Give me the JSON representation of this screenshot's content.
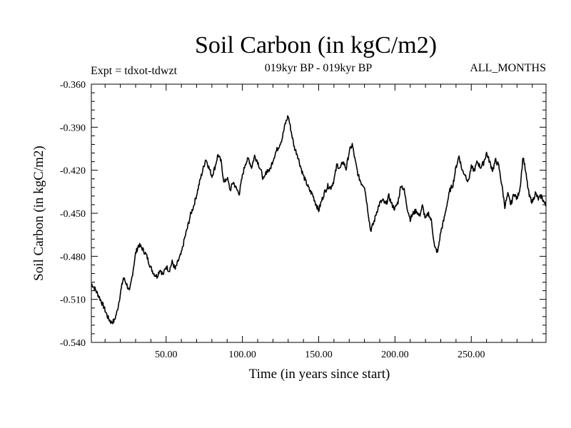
{
  "header": {
    "title": "Soil Carbon (in kgC/m2)",
    "subtitle": "019kyr BP - 019kyr BP",
    "expt": "Expt = tdxot-tdwzt",
    "months": "ALL_MONTHS"
  },
  "chart_data": {
    "type": "line",
    "title": "Soil Carbon (in kgC/m2)",
    "xlabel": "Time (in years since start)",
    "ylabel": "Soil Carbon (in kgC/m2)",
    "xlim": [
      1,
      299
    ],
    "ylim": [
      -0.54,
      -0.36
    ],
    "xticks": [
      50,
      100,
      150,
      200,
      250
    ],
    "xtick_labels": [
      "50.00",
      "100.00",
      "150.00",
      "200.00",
      "250.00"
    ],
    "yticks": [
      -0.36,
      -0.39,
      -0.42,
      -0.45,
      -0.48,
      -0.51,
      -0.54
    ],
    "ytick_labels": [
      "-0.360",
      "-0.390",
      "-0.420",
      "-0.450",
      "-0.480",
      "-0.510",
      "-0.540"
    ],
    "grid": false,
    "series": [
      {
        "color": "#000000",
        "x": [
          1,
          3,
          6,
          9,
          12,
          14,
          16,
          18,
          20,
          22,
          24,
          26,
          28,
          30,
          32,
          34,
          37,
          40,
          42,
          44,
          46,
          48,
          50,
          52,
          54,
          56,
          58,
          60,
          62,
          64,
          66,
          68,
          70,
          72,
          74,
          76,
          78,
          80,
          82,
          84,
          86,
          88,
          90,
          92,
          94,
          96,
          98,
          100,
          102,
          104,
          106,
          108,
          110,
          112,
          114,
          116,
          118,
          120,
          122,
          124,
          126,
          128,
          130,
          132,
          134,
          136,
          138,
          140,
          142,
          144,
          146,
          148,
          150,
          152,
          154,
          156,
          158,
          160,
          162,
          164,
          166,
          168,
          170,
          172,
          174,
          176,
          178,
          180,
          182,
          184,
          186,
          188,
          190,
          192,
          194,
          196,
          198,
          200,
          202,
          204,
          206,
          208,
          210,
          212,
          214,
          216,
          218,
          220,
          222,
          224,
          226,
          228,
          230,
          232,
          234,
          236,
          238,
          240,
          242,
          244,
          246,
          248,
          250,
          252,
          254,
          256,
          258,
          260,
          262,
          264,
          266,
          268,
          270,
          272,
          274,
          276,
          278,
          280,
          282,
          284,
          286,
          288,
          290,
          292,
          294,
          296,
          298,
          299
        ],
        "values": [
          -0.499,
          -0.502,
          -0.508,
          -0.515,
          -0.523,
          -0.526,
          -0.525,
          -0.518,
          -0.506,
          -0.495,
          -0.499,
          -0.505,
          -0.492,
          -0.478,
          -0.472,
          -0.474,
          -0.479,
          -0.488,
          -0.492,
          -0.494,
          -0.489,
          -0.493,
          -0.487,
          -0.49,
          -0.484,
          -0.489,
          -0.483,
          -0.478,
          -0.468,
          -0.46,
          -0.451,
          -0.445,
          -0.437,
          -0.428,
          -0.42,
          -0.412,
          -0.418,
          -0.424,
          -0.418,
          -0.409,
          -0.414,
          -0.429,
          -0.425,
          -0.434,
          -0.428,
          -0.433,
          -0.436,
          -0.424,
          -0.415,
          -0.412,
          -0.418,
          -0.41,
          -0.414,
          -0.42,
          -0.427,
          -0.42,
          -0.42,
          -0.413,
          -0.407,
          -0.403,
          -0.398,
          -0.388,
          -0.382,
          -0.393,
          -0.404,
          -0.409,
          -0.417,
          -0.424,
          -0.429,
          -0.434,
          -0.437,
          -0.443,
          -0.448,
          -0.441,
          -0.435,
          -0.431,
          -0.432,
          -0.427,
          -0.416,
          -0.419,
          -0.414,
          -0.419,
          -0.407,
          -0.402,
          -0.414,
          -0.424,
          -0.429,
          -0.431,
          -0.446,
          -0.462,
          -0.457,
          -0.449,
          -0.443,
          -0.441,
          -0.444,
          -0.438,
          -0.444,
          -0.447,
          -0.442,
          -0.43,
          -0.434,
          -0.446,
          -0.454,
          -0.45,
          -0.448,
          -0.452,
          -0.445,
          -0.454,
          -0.45,
          -0.456,
          -0.474,
          -0.477,
          -0.463,
          -0.455,
          -0.444,
          -0.434,
          -0.43,
          -0.418,
          -0.41,
          -0.42,
          -0.423,
          -0.428,
          -0.418,
          -0.42,
          -0.414,
          -0.418,
          -0.415,
          -0.408,
          -0.414,
          -0.42,
          -0.413,
          -0.417,
          -0.43,
          -0.445,
          -0.437,
          -0.444,
          -0.436,
          -0.44,
          -0.432,
          -0.41,
          -0.424,
          -0.438,
          -0.442,
          -0.436,
          -0.44,
          -0.438,
          -0.443,
          -0.445
        ]
      }
    ]
  }
}
